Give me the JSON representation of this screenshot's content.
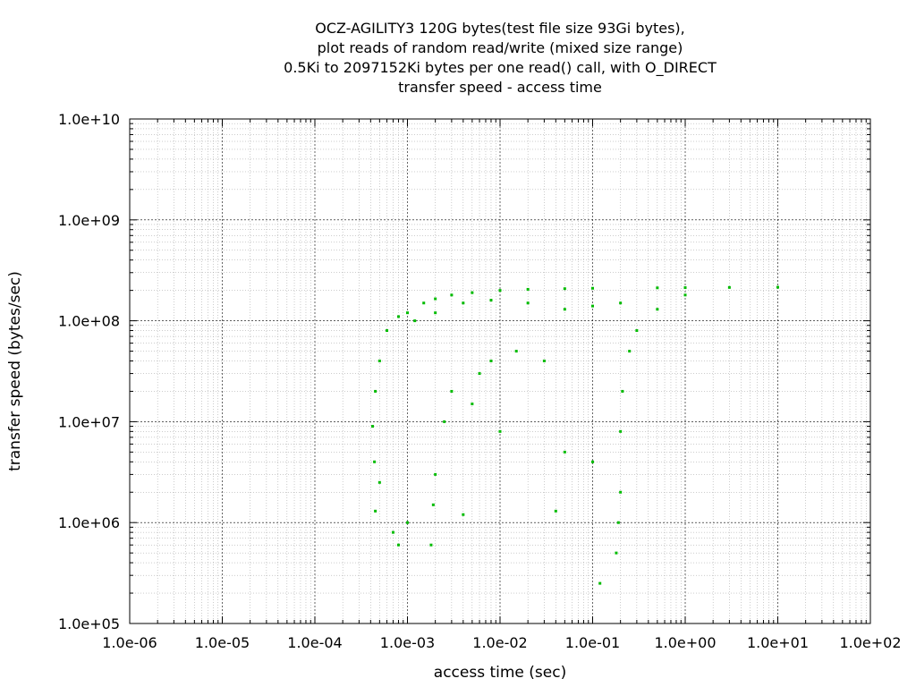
{
  "chart_data": {
    "type": "scatter",
    "title_lines": [
      "OCZ-AGILITY3 120G bytes(test file size 93Gi bytes),",
      "plot reads of random read/write (mixed size range)",
      "0.5Ki to 2097152Ki bytes per one read() call, with O_DIRECT",
      "transfer speed - access time"
    ],
    "xlabel": "access time (sec)",
    "ylabel": "transfer speed (bytes/sec)",
    "xscale": "log",
    "yscale": "log",
    "xlim": [
      1e-06,
      100
    ],
    "ylim": [
      100000.0,
      10000000000.0
    ],
    "x_tick_labels": [
      "1.0e-06",
      "1.0e-05",
      "1.0e-04",
      "1.0e-03",
      "1.0e-02",
      "1.0e-01",
      "1.0e+00",
      "1.0e+01",
      "1.0e+02"
    ],
    "y_tick_labels": [
      "1.0e+05",
      "1.0e+06",
      "1.0e+07",
      "1.0e+08",
      "1.0e+09",
      "1.0e+10"
    ],
    "grid": true,
    "point_color": "#00bb00",
    "series": [
      {
        "points": [
          [
            0.00045,
            20000000
          ],
          [
            0.0005,
            40000000
          ],
          [
            0.0006,
            80000000
          ],
          [
            0.0008,
            110000000
          ],
          [
            0.001,
            120000000
          ],
          [
            0.0015,
            150000000
          ],
          [
            0.002,
            165000000
          ],
          [
            0.003,
            180000000
          ],
          [
            0.005,
            190000000
          ],
          [
            0.01,
            200000000
          ],
          [
            0.02,
            205000000
          ],
          [
            0.05,
            208000000
          ],
          [
            0.1,
            210000000
          ],
          [
            0.5,
            212000000
          ],
          [
            1.0,
            213000000
          ],
          [
            3.0,
            214000000
          ],
          [
            10.0,
            215000000
          ],
          [
            0.0012,
            100000000
          ],
          [
            0.002,
            120000000
          ],
          [
            0.004,
            150000000
          ],
          [
            0.008,
            160000000
          ],
          [
            0.02,
            150000000
          ],
          [
            0.05,
            130000000
          ],
          [
            0.1,
            140000000
          ],
          [
            0.2,
            150000000
          ],
          [
            0.00042,
            9000000
          ],
          [
            0.00044,
            4000000
          ],
          [
            0.00045,
            1300000
          ],
          [
            0.0005,
            2500000
          ],
          [
            0.0007,
            800000
          ],
          [
            0.0008,
            600000
          ],
          [
            0.001,
            1000000
          ],
          [
            0.0018,
            600000
          ],
          [
            0.0019,
            1500000
          ],
          [
            0.002,
            3000000
          ],
          [
            0.0025,
            10000000
          ],
          [
            0.003,
            20000000
          ],
          [
            0.004,
            1200000
          ],
          [
            0.005,
            15000000
          ],
          [
            0.006,
            30000000
          ],
          [
            0.008,
            40000000
          ],
          [
            0.01,
            8000000
          ],
          [
            0.015,
            50000000
          ],
          [
            0.03,
            40000000
          ],
          [
            0.04,
            1300000
          ],
          [
            0.05,
            5000000
          ],
          [
            0.1,
            4000000
          ],
          [
            0.12,
            250000
          ],
          [
            0.18,
            500000
          ],
          [
            0.19,
            1000000
          ],
          [
            0.2,
            2000000
          ],
          [
            0.2,
            8000000
          ],
          [
            0.21,
            20000000
          ],
          [
            0.25,
            50000000
          ],
          [
            0.3,
            80000000
          ],
          [
            0.5,
            130000000
          ],
          [
            1.0,
            180000000
          ]
        ]
      }
    ]
  }
}
